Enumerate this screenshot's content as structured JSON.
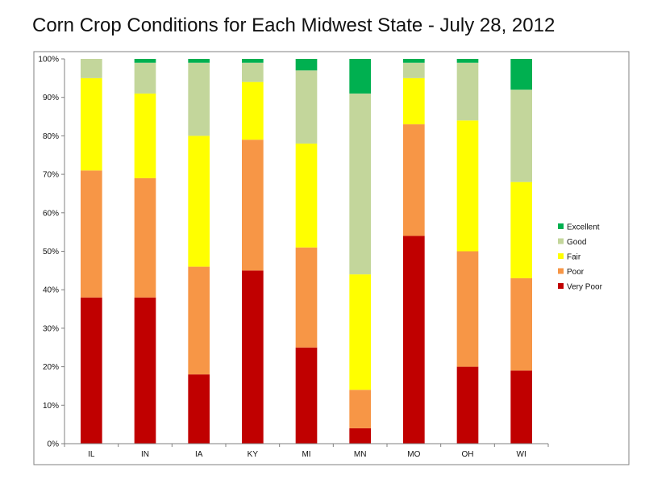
{
  "chart_data": {
    "type": "bar",
    "stacked": true,
    "percent": true,
    "title": "Corn Crop Conditions for Each Midwest State - July 28, 2012",
    "xlabel": "",
    "ylabel": "",
    "categories": [
      "IL",
      "IN",
      "IA",
      "KY",
      "MI",
      "MN",
      "MO",
      "OH",
      "WI"
    ],
    "ylim": [
      0,
      100
    ],
    "yticks": [
      "0%",
      "10%",
      "20%",
      "30%",
      "40%",
      "50%",
      "60%",
      "70%",
      "80%",
      "90%",
      "100%"
    ],
    "series": [
      {
        "name": "Very Poor",
        "color": "#c00000",
        "values": [
          38,
          38,
          18,
          45,
          25,
          4,
          54,
          20,
          19
        ]
      },
      {
        "name": "Poor",
        "color": "#f79646",
        "values": [
          33,
          31,
          28,
          34,
          26,
          10,
          29,
          30,
          24
        ]
      },
      {
        "name": "Fair",
        "color": "#ffff00",
        "values": [
          24,
          22,
          34,
          15,
          27,
          30,
          12,
          34,
          25
        ]
      },
      {
        "name": "Good",
        "color": "#c3d69b",
        "values": [
          5,
          8,
          19,
          5,
          19,
          47,
          4,
          15,
          24
        ]
      },
      {
        "name": "Excellent",
        "color": "#00b050",
        "values": [
          0,
          1,
          1,
          1,
          3,
          9,
          1,
          1,
          8
        ]
      }
    ],
    "legend_order": [
      "Excellent",
      "Good",
      "Fair",
      "Poor",
      "Very Poor"
    ],
    "legend_position": "right",
    "grid": false
  }
}
